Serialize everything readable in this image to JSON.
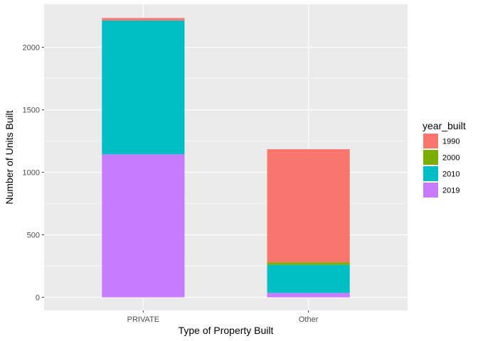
{
  "chart_data": {
    "type": "bar",
    "stacked": true,
    "categories": [
      "PRIVATE",
      "Other"
    ],
    "series": [
      {
        "name": "1990",
        "color": "#F8766D",
        "values": [
          20,
          905
        ]
      },
      {
        "name": "2000",
        "color": "#7CAE00",
        "values": [
          0,
          20
        ]
      },
      {
        "name": "2010",
        "color": "#00BFC4",
        "values": [
          1070,
          225
        ]
      },
      {
        "name": "2019",
        "color": "#C77CFF",
        "values": [
          1145,
          35
        ]
      }
    ],
    "stack_order_bottom_to_top": [
      "2019",
      "2010",
      "2000",
      "1990"
    ],
    "xlabel": "Type of Property Built",
    "ylabel": "Number of Units Built",
    "ylim": [
      -105,
      2345
    ],
    "yticks": [
      0,
      500,
      1000,
      1500,
      2000
    ],
    "legend": {
      "title": "year_built",
      "position": "right"
    },
    "grid": true,
    "panel_background": "#EBEBEB",
    "grid_color": "#FFFFFF"
  }
}
